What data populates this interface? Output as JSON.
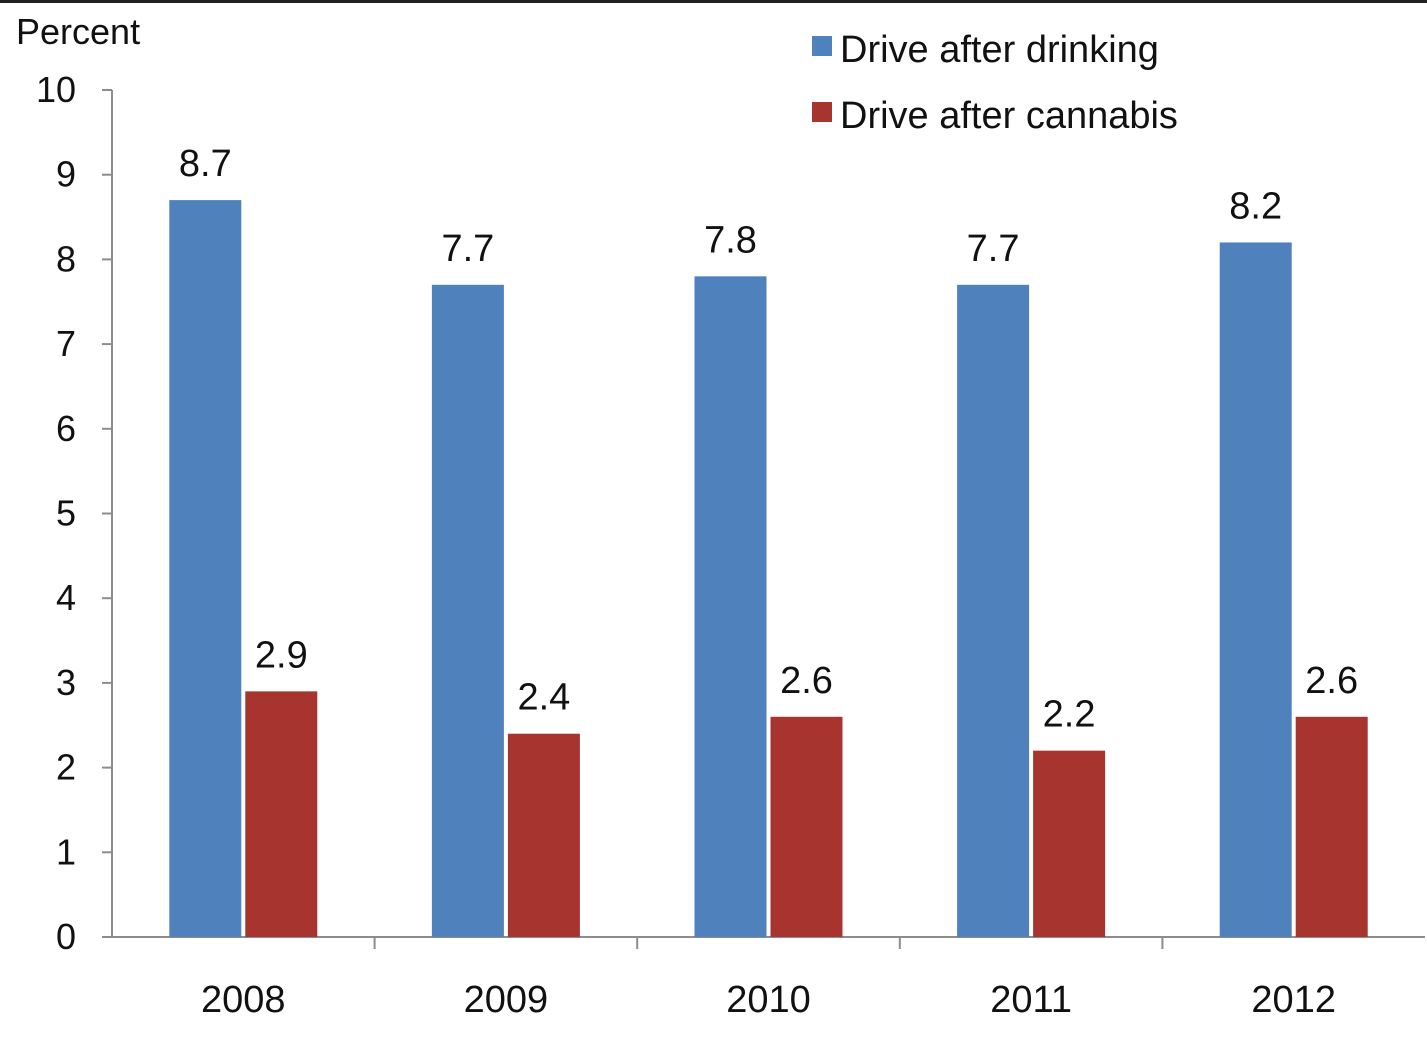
{
  "chart_data": {
    "type": "bar",
    "ylabel": "Percent",
    "xlabel": "",
    "categories": [
      "2008",
      "2009",
      "2010",
      "2011",
      "2012"
    ],
    "series": [
      {
        "name": "Drive after drinking",
        "color": "#4F81BD",
        "values": [
          8.7,
          7.7,
          7.8,
          7.7,
          8.2
        ],
        "labels": [
          "8.7",
          "7.7",
          "7.8",
          "7.7",
          "8.2"
        ]
      },
      {
        "name": "Drive after cannabis",
        "color": "#A83430",
        "values": [
          2.9,
          2.4,
          2.6,
          2.2,
          2.6
        ],
        "labels": [
          "2.9",
          "2.4",
          "2.6",
          "2.2",
          "2.6"
        ]
      }
    ],
    "ylim": [
      0,
      10
    ],
    "yticks": [
      "0",
      "1",
      "2",
      "3",
      "4",
      "5",
      "6",
      "7",
      "8",
      "9",
      "10"
    ],
    "legend_position": "top-right",
    "grid": false
  }
}
